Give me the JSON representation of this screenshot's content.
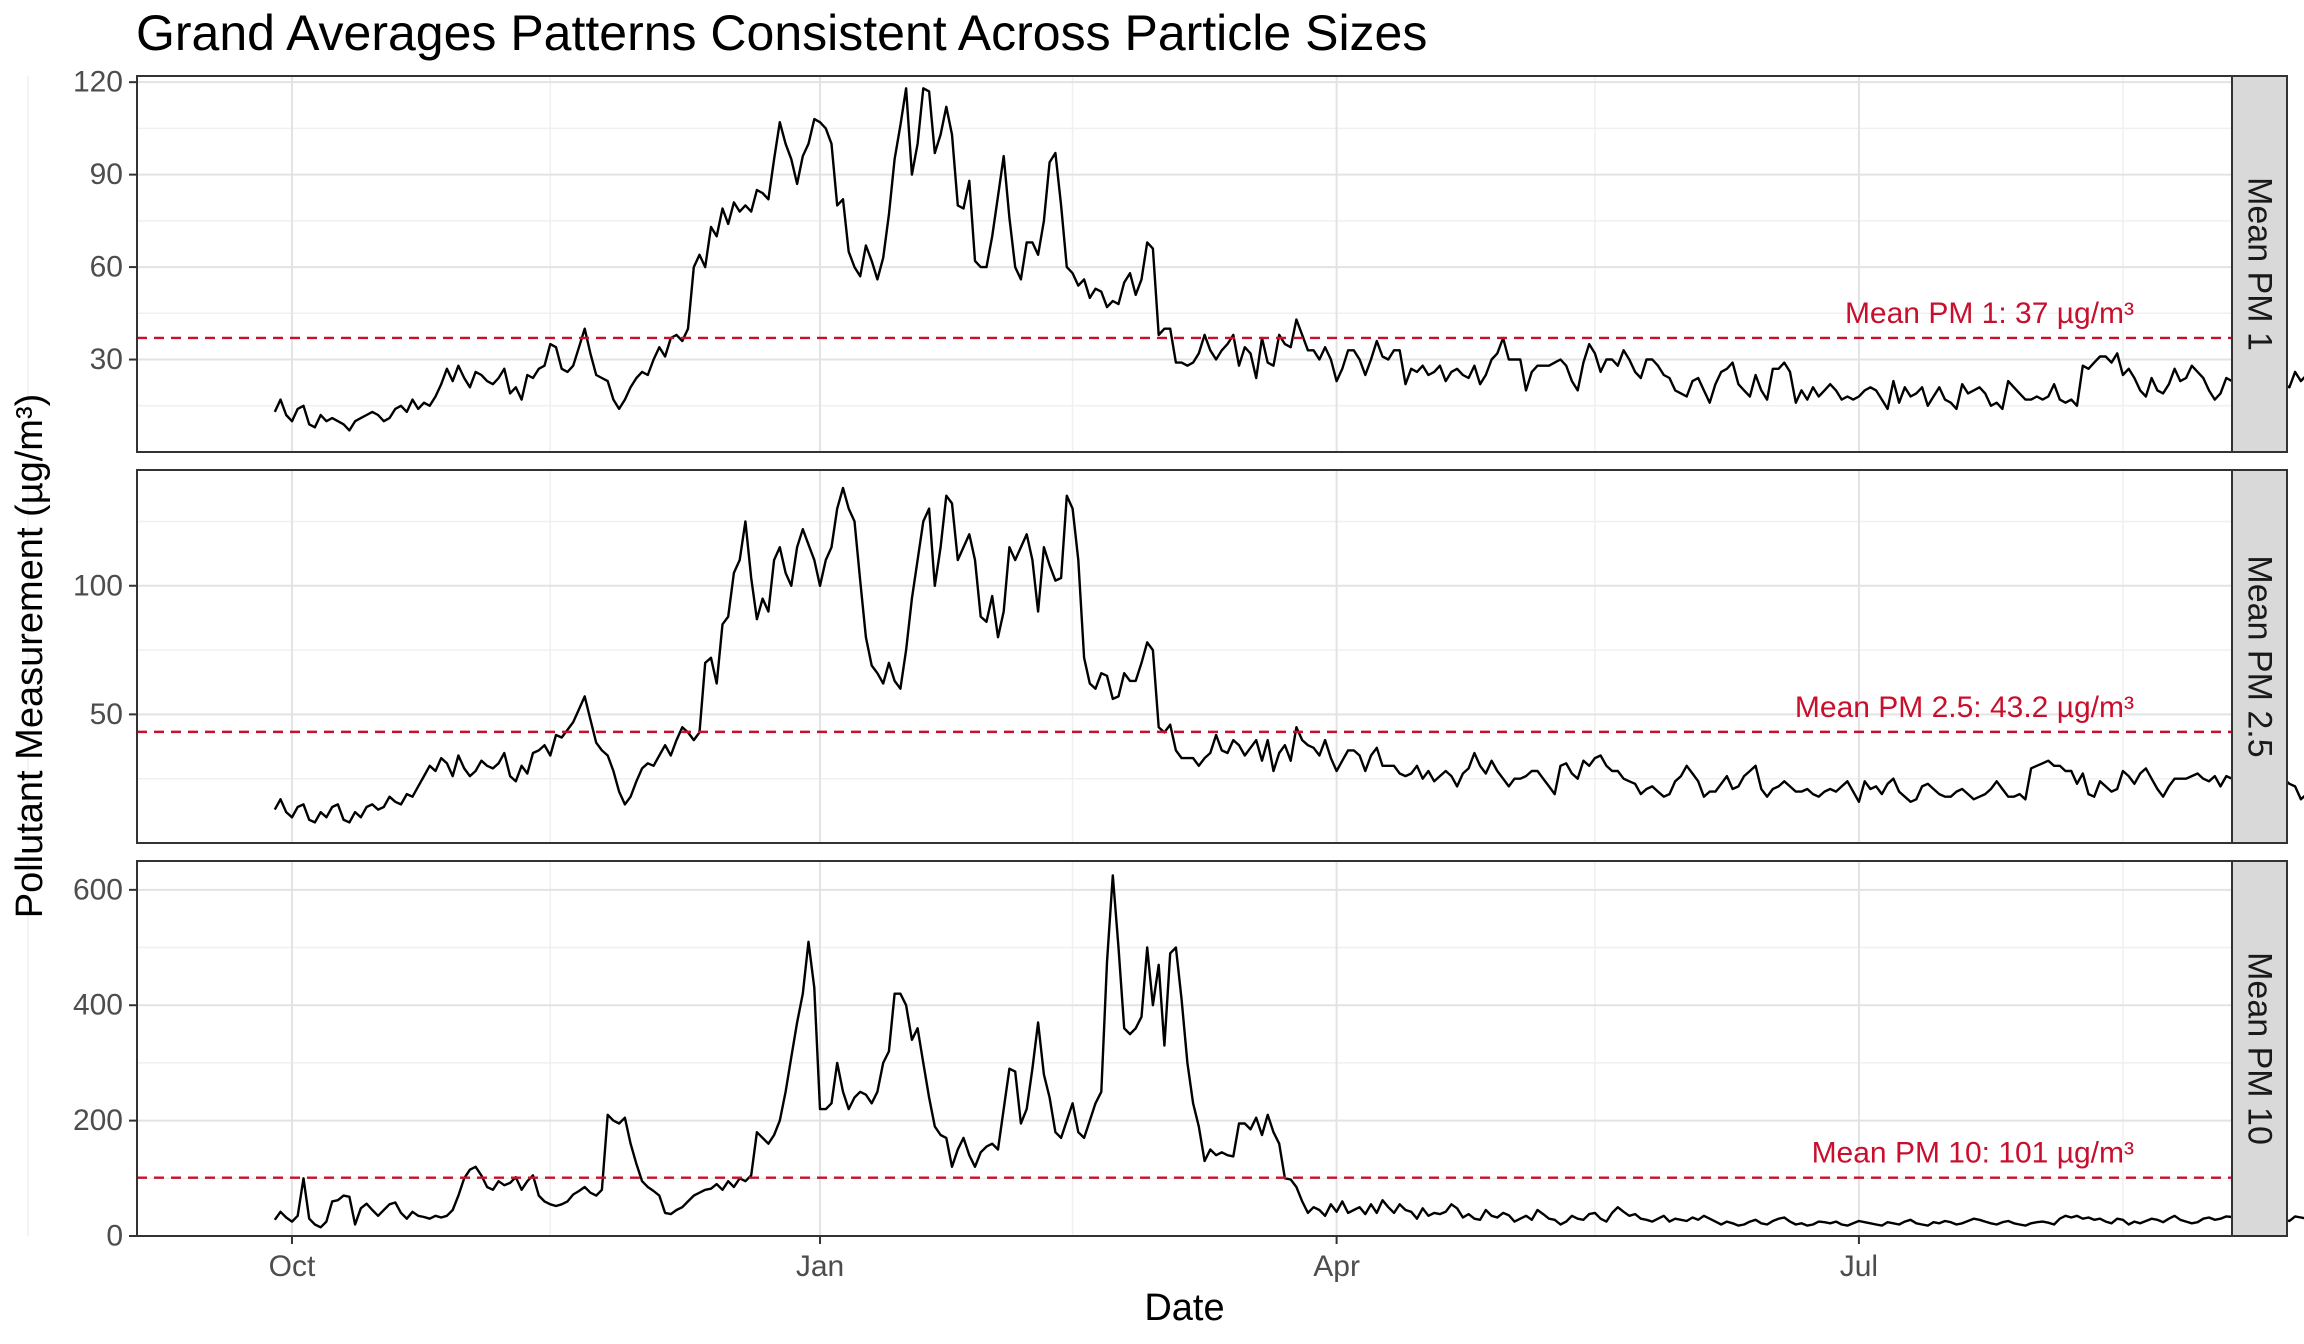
{
  "chart_data": {
    "type": "line",
    "title": "Grand Averages Patterns Consistent Across Particle Sizes",
    "xlabel": "Date",
    "ylabel": "Pollutant Measurement (µg/m³)",
    "x_tick_labels": [
      "Oct",
      "Jan",
      "Apr",
      "Jul"
    ],
    "x_tick_dates": [
      "2018-10-01",
      "2019-01-01",
      "2019-04-01",
      "2019-07-01"
    ],
    "x_minor_dates": [
      "2018-08-16",
      "2018-11-15",
      "2019-02-14",
      "2019-05-16",
      "2019-08-16"
    ],
    "x_range": [
      "2018-09-04",
      "2019-09-04"
    ],
    "grid": true,
    "facet_strip_position": "right",
    "mean_line_color": "#c8102e",
    "line_color": "#000000",
    "panels": [
      {
        "strip_label": "Mean PM 1",
        "ylim": [
          0,
          122
        ],
        "y_ticks": [
          30,
          60,
          90,
          120
        ],
        "mean": 37,
        "mean_label": "Mean PM 1: 37 µg/m³",
        "start_date": "2018-09-28",
        "values": [
          13,
          17,
          12,
          10,
          14,
          15,
          9,
          8,
          12,
          10,
          11,
          10,
          9,
          7,
          10,
          11,
          12,
          13,
          12,
          10,
          11,
          14,
          15,
          13,
          17,
          14,
          16,
          15,
          18,
          22,
          27,
          23,
          28,
          24,
          21,
          26,
          25,
          23,
          22,
          24,
          27,
          19,
          21,
          17,
          25,
          24,
          27,
          28,
          35,
          34,
          27,
          26,
          28,
          34,
          40,
          32,
          25,
          24,
          23,
          17,
          14,
          17,
          21,
          24,
          26,
          25,
          30,
          34,
          31,
          37,
          38,
          36,
          40,
          60,
          64,
          60,
          73,
          70,
          79,
          74,
          81,
          78,
          80,
          78,
          85,
          84,
          82,
          95,
          107,
          100,
          95,
          87,
          96,
          100,
          108,
          107,
          105,
          100,
          80,
          82,
          65,
          60,
          57,
          67,
          62,
          56,
          63,
          77,
          95,
          106,
          118,
          90,
          100,
          118,
          117,
          97,
          103,
          112,
          103,
          80,
          79,
          88,
          62,
          60,
          60,
          70,
          83,
          96,
          76,
          60,
          56,
          68,
          68,
          64,
          75,
          94,
          97,
          80,
          60,
          58,
          54,
          56,
          50,
          53,
          52,
          47,
          49,
          48,
          55,
          58,
          51,
          56,
          68,
          66,
          38,
          40,
          40,
          29,
          29,
          28,
          29,
          32,
          38,
          33,
          30,
          33,
          35,
          38,
          28,
          34,
          32,
          24,
          37,
          29,
          28,
          38,
          35,
          34,
          43,
          38,
          33,
          33,
          30,
          34,
          30,
          23,
          27,
          33,
          33,
          30,
          25,
          30,
          36,
          31,
          30,
          33,
          33,
          22,
          27,
          26,
          28,
          25,
          26,
          28,
          23,
          26,
          27,
          25,
          24,
          28,
          22,
          25,
          30,
          32,
          37,
          30,
          30,
          30,
          20,
          26,
          28,
          28,
          28,
          29,
          30,
          28,
          23,
          20,
          29,
          35,
          32,
          26,
          30,
          30,
          28,
          33,
          30,
          26,
          24,
          30,
          30,
          28,
          25,
          24,
          20,
          19,
          18,
          23,
          24,
          20,
          16,
          22,
          26,
          27,
          29,
          22,
          20,
          18,
          25,
          20,
          17,
          27,
          27,
          29,
          26,
          16,
          20,
          17,
          21,
          18,
          20,
          22,
          20,
          17,
          18,
          17,
          18,
          20,
          21,
          20,
          17,
          14,
          23,
          16,
          21,
          18,
          19,
          21,
          15,
          18,
          21,
          17,
          16,
          14,
          22,
          19,
          20,
          21,
          19,
          15,
          16,
          14,
          23,
          21,
          19,
          17,
          17,
          18,
          17,
          18,
          22,
          17,
          16,
          17,
          15,
          28,
          27,
          29,
          31,
          31,
          29,
          32,
          25,
          27,
          24,
          20,
          18,
          24,
          20,
          19,
          22,
          27,
          23,
          24,
          28,
          26,
          24,
          20,
          17,
          19,
          24,
          23,
          24,
          24,
          25,
          23,
          23,
          25,
          21,
          24,
          22,
          21,
          26,
          23,
          25,
          24,
          22,
          23,
          27,
          22,
          20,
          18,
          15,
          17,
          18
        ]
      },
      {
        "strip_label": "Mean PM 2.5",
        "ylim": [
          0,
          145
        ],
        "y_ticks": [
          50,
          100
        ],
        "mean": 43.2,
        "mean_label": "Mean PM 2.5: 43.2 µg/m³",
        "start_date": "2018-09-28",
        "values": [
          13,
          17,
          12,
          10,
          14,
          15,
          9,
          8,
          12,
          10,
          14,
          15,
          9,
          8,
          12,
          10,
          14,
          15,
          13,
          14,
          18,
          16,
          15,
          19,
          18,
          22,
          26,
          30,
          28,
          33,
          31,
          26,
          34,
          29,
          26,
          28,
          32,
          30,
          29,
          31,
          35,
          26,
          24,
          30,
          27,
          35,
          36,
          38,
          34,
          42,
          41,
          44,
          47,
          52,
          57,
          48,
          39,
          36,
          34,
          28,
          20,
          15,
          18,
          24,
          29,
          31,
          30,
          34,
          38,
          34,
          40,
          45,
          43,
          40,
          43,
          70,
          72,
          62,
          85,
          88,
          105,
          110,
          125,
          103,
          87,
          95,
          90,
          110,
          115,
          105,
          100,
          115,
          122,
          116,
          110,
          100,
          110,
          115,
          130,
          138,
          130,
          125,
          102,
          80,
          69,
          66,
          62,
          70,
          63,
          60,
          75,
          95,
          110,
          125,
          130,
          100,
          115,
          135,
          132,
          110,
          115,
          120,
          110,
          88,
          86,
          96,
          80,
          90,
          115,
          110,
          115,
          120,
          110,
          90,
          115,
          108,
          102,
          103,
          135,
          130,
          110,
          72,
          62,
          60,
          66,
          65,
          56,
          57,
          66,
          63,
          63,
          70,
          78,
          75,
          45,
          43,
          46,
          36,
          33,
          33,
          33,
          30,
          33,
          35,
          42,
          36,
          35,
          40,
          38,
          34,
          37,
          40,
          32,
          40,
          28,
          35,
          38,
          32,
          45,
          40,
          38,
          37,
          34,
          40,
          33,
          28,
          32,
          36,
          36,
          34,
          28,
          34,
          37,
          30,
          30,
          30,
          27,
          26,
          27,
          30,
          25,
          28,
          24,
          26,
          28,
          26,
          22,
          27,
          29,
          35,
          30,
          27,
          32,
          28,
          25,
          22,
          25,
          25,
          26,
          28,
          28,
          25,
          22,
          19,
          30,
          31,
          27,
          25,
          32,
          30,
          33,
          34,
          30,
          28,
          28,
          25,
          24,
          23,
          19,
          21,
          22,
          20,
          18,
          19,
          24,
          26,
          30,
          27,
          24,
          18,
          20,
          20,
          23,
          26,
          21,
          22,
          26,
          28,
          30,
          21,
          18,
          21,
          22,
          24,
          22,
          20,
          20,
          21,
          19,
          18,
          20,
          21,
          20,
          22,
          24,
          20,
          16,
          24,
          21,
          22,
          19,
          23,
          25,
          20,
          18,
          16,
          17,
          22,
          23,
          21,
          19,
          18,
          18,
          20,
          21,
          19,
          17,
          18,
          19,
          21,
          24,
          21,
          18,
          18,
          19,
          17,
          29,
          30,
          31,
          32,
          30,
          30,
          28,
          28,
          23,
          27,
          19,
          18,
          24,
          22,
          20,
          21,
          28,
          26,
          23,
          27,
          29,
          25,
          21,
          18,
          22,
          25,
          25,
          25,
          26,
          27,
          25,
          24,
          26,
          22,
          26,
          25,
          23,
          28,
          27,
          27,
          25,
          24,
          26,
          26,
          25,
          23,
          22,
          17,
          19,
          20
        ]
      },
      {
        "strip_label": "Mean PM 10",
        "ylim": [
          0,
          650
        ],
        "y_ticks": [
          0,
          200,
          400,
          600
        ],
        "mean": 101,
        "mean_label": "Mean PM 10: 101 µg/m³",
        "start_date": "2018-09-28",
        "values": [
          28,
          42,
          32,
          25,
          35,
          100,
          30,
          20,
          15,
          25,
          60,
          62,
          70,
          68,
          20,
          48,
          56,
          45,
          35,
          45,
          55,
          58,
          40,
          30,
          42,
          35,
          33,
          30,
          35,
          32,
          35,
          45,
          70,
          100,
          115,
          120,
          105,
          85,
          80,
          95,
          88,
          92,
          102,
          80,
          95,
          105,
          70,
          60,
          55,
          52,
          55,
          60,
          72,
          78,
          85,
          75,
          70,
          80,
          210,
          200,
          195,
          205,
          160,
          125,
          95,
          85,
          78,
          70,
          40,
          38,
          45,
          50,
          60,
          70,
          75,
          80,
          82,
          90,
          80,
          95,
          85,
          100,
          95,
          105,
          180,
          170,
          160,
          175,
          200,
          250,
          310,
          370,
          420,
          510,
          430,
          220,
          220,
          230,
          300,
          250,
          220,
          240,
          250,
          245,
          230,
          250,
          300,
          320,
          420,
          420,
          400,
          340,
          360,
          300,
          240,
          190,
          175,
          170,
          120,
          150,
          170,
          140,
          120,
          145,
          155,
          160,
          150,
          220,
          290,
          285,
          195,
          220,
          290,
          370,
          280,
          240,
          180,
          170,
          200,
          230,
          180,
          170,
          200,
          230,
          250,
          475,
          625,
          500,
          360,
          350,
          360,
          380,
          500,
          400,
          470,
          330,
          490,
          500,
          410,
          300,
          230,
          190,
          130,
          150,
          140,
          145,
          140,
          138,
          195,
          195,
          185,
          205,
          175,
          210,
          180,
          160,
          100,
          98,
          85,
          60,
          40,
          50,
          45,
          35,
          55,
          42,
          60,
          40,
          45,
          50,
          38,
          55,
          40,
          62,
          50,
          40,
          55,
          45,
          42,
          30,
          48,
          35,
          40,
          38,
          42,
          55,
          48,
          32,
          38,
          30,
          28,
          45,
          35,
          32,
          40,
          36,
          25,
          30,
          35,
          28,
          45,
          38,
          30,
          28,
          20,
          25,
          35,
          30,
          28,
          38,
          40,
          30,
          25,
          40,
          50,
          42,
          35,
          38,
          30,
          28,
          25,
          30,
          35,
          25,
          30,
          28,
          26,
          32,
          28,
          35,
          30,
          25,
          20,
          25,
          22,
          18,
          20,
          25,
          28,
          22,
          20,
          26,
          30,
          32,
          25,
          20,
          22,
          18,
          20,
          25,
          24,
          22,
          25,
          20,
          18,
          22,
          26,
          24,
          22,
          20,
          18,
          24,
          22,
          20,
          25,
          28,
          22,
          20,
          18,
          24,
          22,
          26,
          24,
          20,
          22,
          26,
          30,
          28,
          25,
          22,
          20,
          24,
          26,
          22,
          20,
          18,
          22,
          24,
          25,
          23,
          20,
          30,
          35,
          32,
          35,
          30,
          32,
          28,
          30,
          25,
          22,
          30,
          28,
          20,
          25,
          22,
          26,
          30,
          28,
          24,
          30,
          35,
          28,
          25,
          22,
          24,
          30,
          32,
          28,
          30,
          34,
          33,
          30,
          28,
          30,
          32,
          30,
          35,
          28,
          30,
          28,
          26,
          34,
          32,
          30,
          28,
          30,
          33,
          36,
          32,
          30,
          28,
          30
        ]
      }
    ]
  }
}
